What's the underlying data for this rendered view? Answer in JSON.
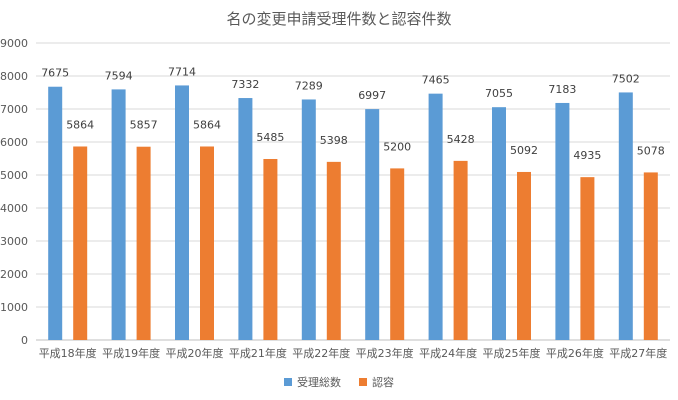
{
  "chart_data": {
    "type": "bar",
    "title": "名の変更申請受理件数と認容件数",
    "categories": [
      "平成18年度",
      "平成19年度",
      "平成20年度",
      "平成21年度",
      "平成22年度",
      "平成23年度",
      "平成24年度",
      "平成25年度",
      "平成26年度",
      "平成27年度"
    ],
    "series": [
      {
        "name": "受理総数",
        "color": "#5b9bd5",
        "values": [
          7675,
          7594,
          7714,
          7332,
          7289,
          6997,
          7465,
          7055,
          7183,
          7502
        ]
      },
      {
        "name": "認容",
        "color": "#ed7d31",
        "values": [
          5864,
          5857,
          5864,
          5485,
          5398,
          5200,
          5428,
          5092,
          4935,
          5078
        ]
      }
    ],
    "ylim": [
      0,
      9000
    ],
    "yticks": [
      0,
      1000,
      2000,
      3000,
      4000,
      5000,
      6000,
      7000,
      8000,
      9000
    ],
    "grid": true,
    "legend": "bottom"
  }
}
